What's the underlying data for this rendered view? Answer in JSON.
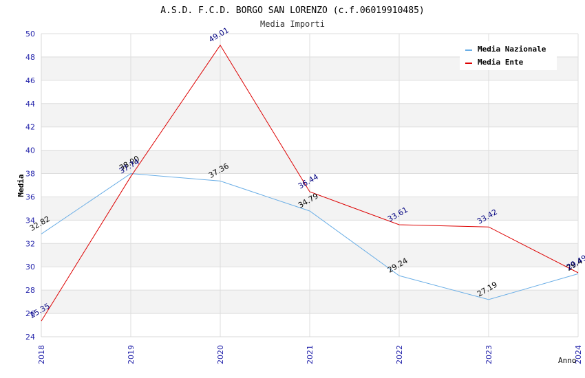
{
  "chart_data": {
    "type": "line",
    "title": "A.S.D. F.C.D. BORGO SAN LORENZO (c.f.06019910485)",
    "subtitle": "Media Importi",
    "xlabel": "Anno",
    "ylabel": "Media",
    "x": [
      "2018",
      "2019",
      "2020",
      "2021",
      "2022",
      "2023",
      "2024"
    ],
    "ylim": [
      24,
      50
    ],
    "yticks": [
      "24",
      "26",
      "28",
      "30",
      "32",
      "34",
      "36",
      "38",
      "40",
      "42",
      "44",
      "46",
      "48",
      "50"
    ],
    "grid": true,
    "legend_position": "top-right",
    "series": [
      {
        "name": "Media Nazionale",
        "color": "#6aaee6",
        "label_color": "#000000",
        "values": [
          32.82,
          38.0,
          37.36,
          34.79,
          29.24,
          27.19,
          29.4
        ],
        "labels": [
          "32.82",
          "38.00",
          "37.36",
          "34.79",
          "29.24",
          "27.19",
          "29.4"
        ]
      },
      {
        "name": "Media Ente",
        "color": "#dd0000",
        "label_color": "#000080",
        "values": [
          25.35,
          37.74,
          49.01,
          36.44,
          33.61,
          33.42,
          29.49
        ],
        "labels": [
          "25.35",
          "37.74",
          "49.01",
          "36.44",
          "33.61",
          "33.42",
          "29.49"
        ]
      }
    ]
  }
}
